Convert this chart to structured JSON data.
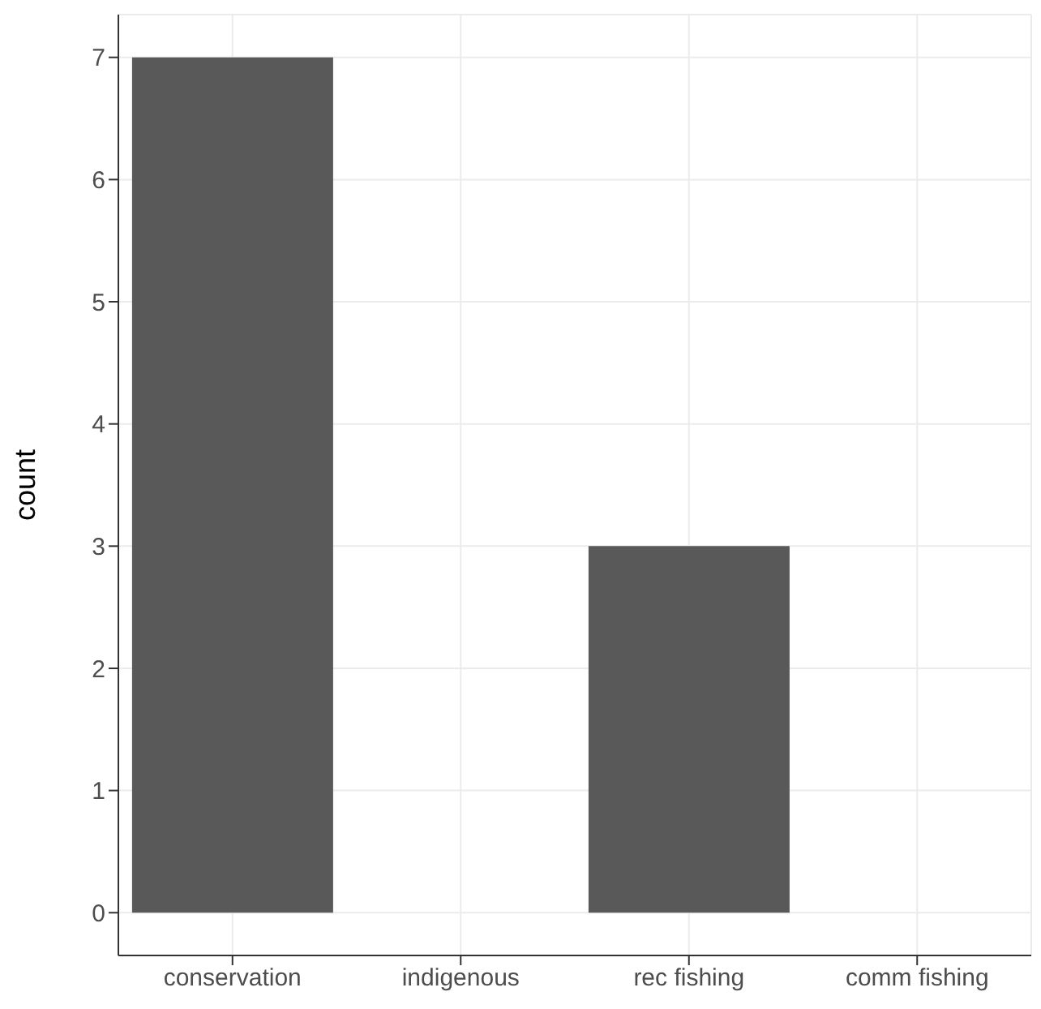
{
  "chart_data": {
    "type": "bar",
    "ylabel": "count",
    "categories": [
      "conservation",
      "indigenous",
      "rec fishing",
      "comm fishing"
    ],
    "values": [
      7,
      0,
      3,
      0
    ],
    "color": "#595959",
    "ylim": [
      -0.35,
      7.35
    ],
    "yticks": [
      0,
      1,
      2,
      3,
      4,
      5,
      6,
      7
    ],
    "grid": true
  }
}
